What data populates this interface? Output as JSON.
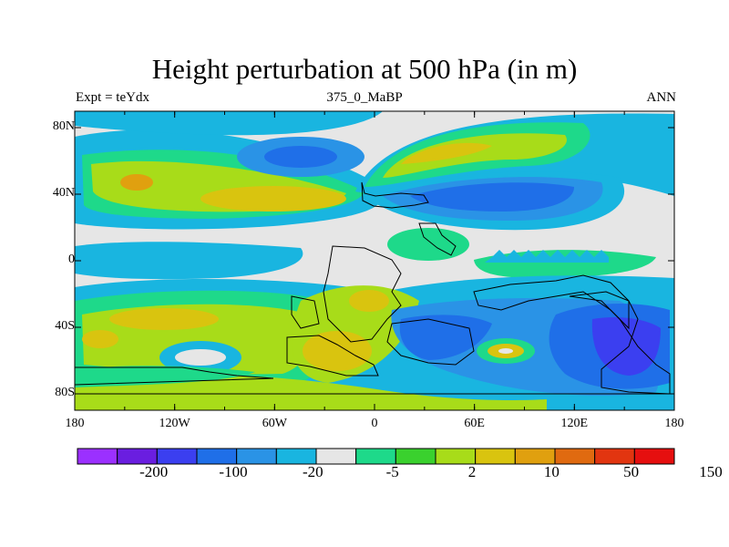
{
  "title": "Height perturbation at 500 hPa (in m)",
  "subtitle_left": "Expt = teYdx",
  "subtitle_center": "375_0_MaBP",
  "subtitle_right": "ANN",
  "lat_labels": [
    "80N",
    "40N",
    "0",
    "40S",
    "80S"
  ],
  "lon_labels": [
    "180",
    "120W",
    "60W",
    "0",
    "60E",
    "120E",
    "180"
  ],
  "colorbar": {
    "colors": [
      "#9b30ff",
      "#6a1ee0",
      "#3b3ff0",
      "#1f6fe8",
      "#2a93e6",
      "#19b5e0",
      "#e6e6e6",
      "#1ed98a",
      "#3ad12e",
      "#a8dc19",
      "#d9c40f",
      "#e0a00f",
      "#e06a10",
      "#e23510",
      "#e60f0f"
    ],
    "labels": [
      "-200",
      "-100",
      "-20",
      "-5",
      "2",
      "10",
      "50",
      "150"
    ]
  }
}
